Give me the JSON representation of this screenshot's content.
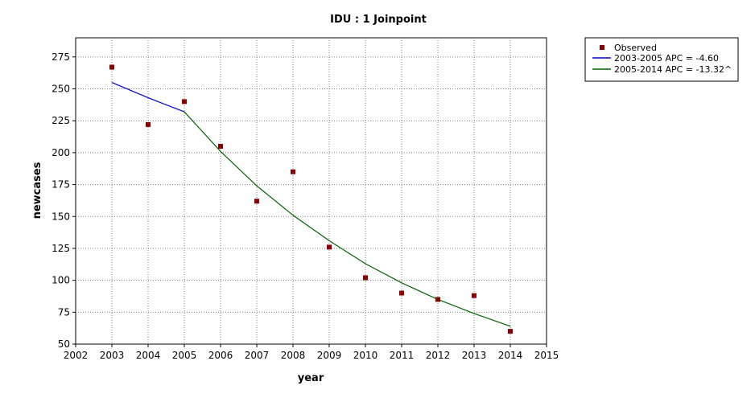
{
  "chart_data": {
    "type": "line",
    "title": "IDU : 1 Joinpoint",
    "xlabel": "year",
    "ylabel": "newcases",
    "xlim": [
      2002,
      2015
    ],
    "ylim": [
      50,
      290
    ],
    "xticks": [
      "2002",
      "2003",
      "2004",
      "2005",
      "2006",
      "2007",
      "2008",
      "2009",
      "2010",
      "2011",
      "2012",
      "2013",
      "2014",
      "2015"
    ],
    "yticks": [
      "50",
      "75",
      "100",
      "125",
      "150",
      "175",
      "200",
      "225",
      "250",
      "275"
    ],
    "grid": true,
    "legend_position": "right",
    "observed": {
      "name": "Observed",
      "color": "#8b0000",
      "x": [
        2003,
        2004,
        2005,
        2006,
        2007,
        2008,
        2009,
        2010,
        2011,
        2012,
        2013,
        2014
      ],
      "y": [
        267,
        222,
        240,
        205,
        162,
        185,
        126,
        102,
        90,
        85,
        88,
        60
      ]
    },
    "series": [
      {
        "name": "2003-2005 APC  =  -4.60",
        "color": "#0000cc",
        "x": [
          2003,
          2004,
          2005
        ],
        "y": [
          255,
          243,
          232
        ]
      },
      {
        "name": "2005-2014 APC  = -13.32^",
        "color": "#006400",
        "x": [
          2005,
          2006,
          2007,
          2008,
          2009,
          2010,
          2011,
          2012,
          2013,
          2014
        ],
        "y": [
          232,
          201,
          174,
          151,
          131,
          113,
          98,
          85,
          74,
          64
        ]
      }
    ]
  }
}
